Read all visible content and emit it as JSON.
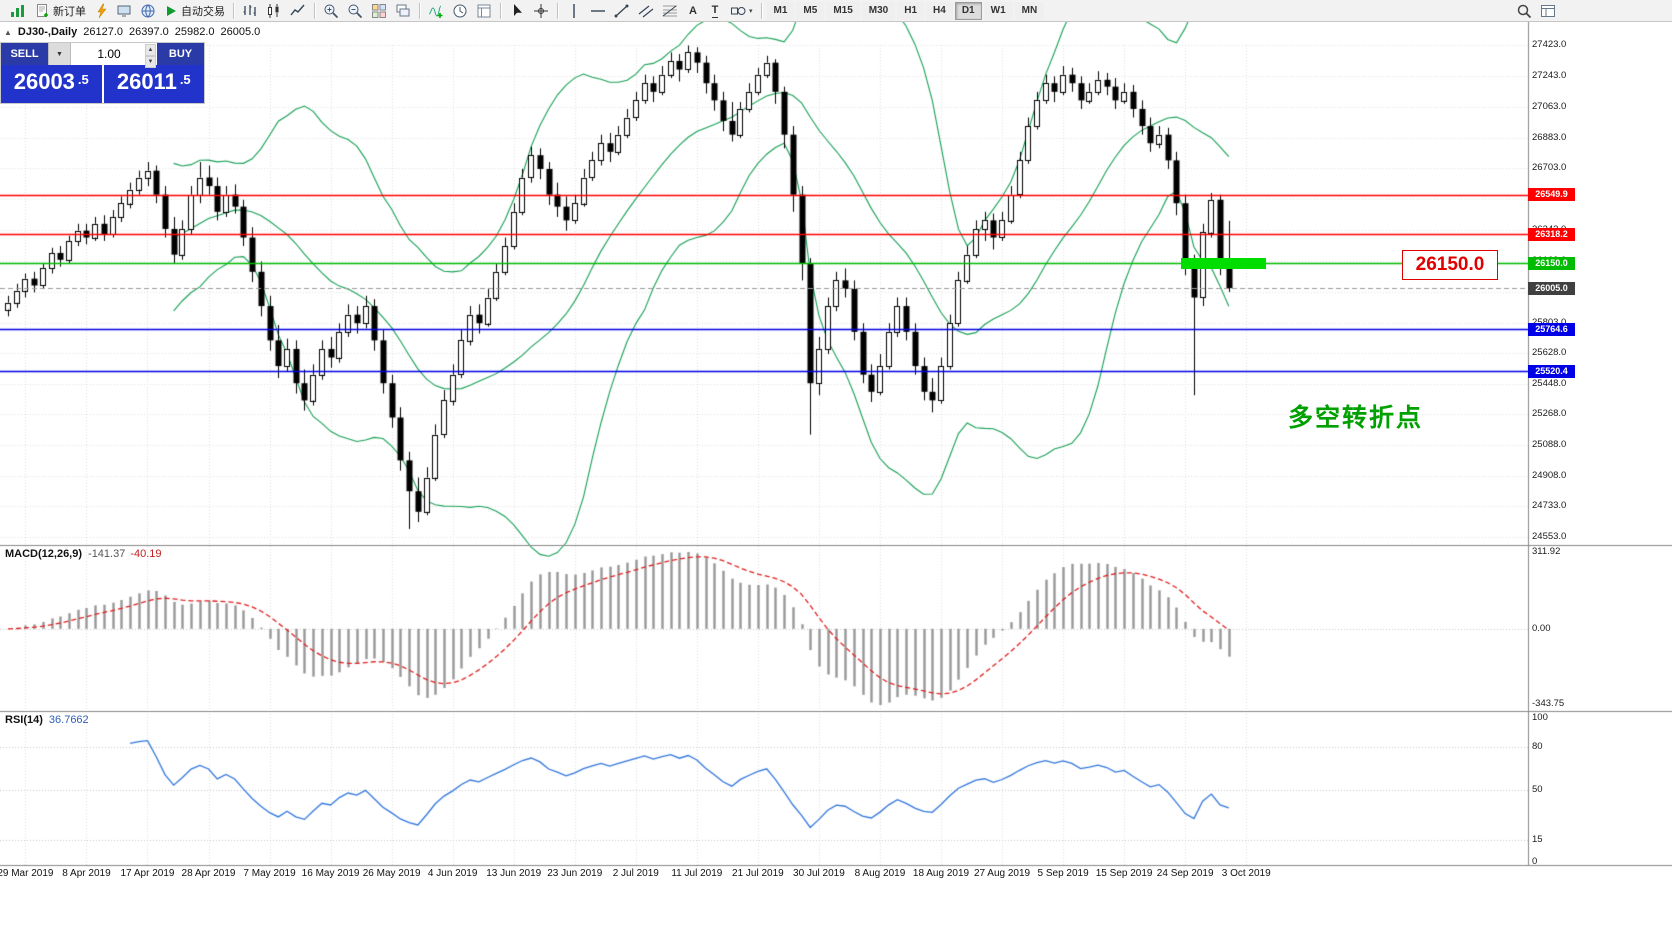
{
  "icons": {
    "collapse": "▲",
    "dropdown_arrow": "▼",
    "spin_up": "▲",
    "spin_down": "▼",
    "shapes_caret": "▾",
    "text_a": "A",
    "text_t": "T"
  },
  "toolbar": {
    "new_order": "新订单",
    "auto_trading": "自动交易",
    "timeframes": [
      "M1",
      "M5",
      "M15",
      "M30",
      "H1",
      "H4",
      "D1",
      "W1",
      "MN"
    ],
    "active_timeframe": "D1"
  },
  "chart": {
    "symbol": "DJ30-,Daily",
    "ohlc": {
      "open": "26127.0",
      "high": "26397.0",
      "low": "25982.0",
      "close": "26005.0"
    },
    "price_range": [
      24553,
      27423
    ],
    "price_axis": [
      "27423.0",
      "27243.0",
      "27063.0",
      "26883.0",
      "26703.0",
      "26523.0",
      "26343.0",
      "26163.0",
      "25983.0",
      "25803.0",
      "25628.0",
      "25448.0",
      "25268.0",
      "25088.0",
      "24908.0",
      "24733.0",
      "24553.0"
    ],
    "dates": [
      "29 Mar 2019",
      "8 Apr 2019",
      "17 Apr 2019",
      "28 Apr 2019",
      "7 May 2019",
      "16 May 2019",
      "26 May 2019",
      "4 Jun 2019",
      "13 Jun 2019",
      "23 Jun 2019",
      "2 Jul 2019",
      "11 Jul 2019",
      "21 Jul 2019",
      "30 Jul 2019",
      "8 Aug 2019",
      "18 Aug 2019",
      "27 Aug 2019",
      "5 Sep 2019",
      "15 Sep 2019",
      "24 Sep 2019",
      "3 Oct 2019"
    ],
    "hlines": [
      {
        "label": "26549.9",
        "value": 26549.9,
        "color": "#FF0000"
      },
      {
        "label": "26318.2",
        "value": 26318.2,
        "color": "#FF0000"
      },
      {
        "label": "26150.0",
        "value": 26150.0,
        "color": "#00BB00"
      },
      {
        "label": "25764.6",
        "value": 25764.6,
        "color": "#0000E6"
      },
      {
        "label": "25520.4",
        "value": 25520.4,
        "color": "#0000E6"
      }
    ],
    "current_price": {
      "label": "26005.0",
      "value": 26005.0,
      "color": "#404040"
    },
    "annotation": {
      "text": "多空转折点",
      "color": "#00A000"
    },
    "price_callout": {
      "text": "26150.0",
      "color": "#E00000"
    },
    "trade_panel": {
      "sell_label": "SELL",
      "buy_label": "BUY",
      "volume": "1.00",
      "sell_price": "26003",
      "sell_frac": ".5",
      "buy_price": "26011",
      "buy_frac": ".5"
    }
  },
  "chart_data": {
    "type": "candlestick",
    "symbol": "DJ30",
    "timeframe": "Daily",
    "overlays": {
      "bollinger": {
        "period": 20,
        "deviation": 2,
        "color": "#18A055"
      }
    },
    "macd": {
      "label": "MACD(12,26,9)",
      "main": "-141.37",
      "signal": "-40.19",
      "params": [
        12,
        26,
        9
      ],
      "axis": [
        "311.92",
        "0.00",
        "-343.75"
      ]
    },
    "rsi": {
      "label": "RSI(14)",
      "value": "36.7662",
      "period": 14,
      "axis": [
        "100",
        "80",
        "50",
        "15",
        "0"
      ]
    },
    "candles": [
      [
        25880,
        25960,
        25840,
        25920
      ],
      [
        25920,
        26030,
        25890,
        25990
      ],
      [
        25990,
        26090,
        25950,
        26060
      ],
      [
        26060,
        26100,
        25980,
        26020
      ],
      [
        26020,
        26150,
        26000,
        26120
      ],
      [
        26120,
        26240,
        26090,
        26210
      ],
      [
        26210,
        26250,
        26130,
        26170
      ],
      [
        26170,
        26310,
        26150,
        26280
      ],
      [
        26280,
        26380,
        26250,
        26340
      ],
      [
        26340,
        26380,
        26260,
        26300
      ],
      [
        26300,
        26420,
        26280,
        26380
      ],
      [
        26380,
        26430,
        26280,
        26320
      ],
      [
        26320,
        26460,
        26300,
        26420
      ],
      [
        26420,
        26540,
        26390,
        26500
      ],
      [
        26500,
        26620,
        26470,
        26580
      ],
      [
        26580,
        26690,
        26550,
        26650
      ],
      [
        26650,
        26740,
        26600,
        26690
      ],
      [
        26690,
        26720,
        26500,
        26550
      ],
      [
        26550,
        26600,
        26300,
        26350
      ],
      [
        26350,
        26420,
        26150,
        26200
      ],
      [
        26200,
        26400,
        26170,
        26350
      ],
      [
        26350,
        26600,
        26320,
        26550
      ],
      [
        26550,
        26740,
        26500,
        26650
      ],
      [
        26650,
        26720,
        26550,
        26600
      ],
      [
        26600,
        26650,
        26400,
        26450
      ],
      [
        26450,
        26600,
        26420,
        26550
      ],
      [
        26550,
        26610,
        26440,
        26480
      ],
      [
        26480,
        26520,
        26250,
        26300
      ],
      [
        26300,
        26360,
        26040,
        26100
      ],
      [
        26100,
        26160,
        25840,
        25900
      ],
      [
        25900,
        25960,
        25640,
        25700
      ],
      [
        25700,
        25790,
        25480,
        25550
      ],
      [
        25550,
        25710,
        25520,
        25650
      ],
      [
        25650,
        25700,
        25390,
        25450
      ],
      [
        25450,
        25530,
        25290,
        25350
      ],
      [
        25350,
        25560,
        25320,
        25500
      ],
      [
        25500,
        25700,
        25470,
        25650
      ],
      [
        25650,
        25720,
        25540,
        25600
      ],
      [
        25600,
        25800,
        25570,
        25750
      ],
      [
        25750,
        25910,
        25720,
        25850
      ],
      [
        25850,
        25900,
        25740,
        25800
      ],
      [
        25800,
        25960,
        25770,
        25900
      ],
      [
        25900,
        25940,
        25640,
        25700
      ],
      [
        25700,
        25760,
        25390,
        25450
      ],
      [
        25450,
        25500,
        25190,
        25250
      ],
      [
        25250,
        25310,
        24940,
        25000
      ],
      [
        25000,
        25050,
        24600,
        24820
      ],
      [
        24820,
        24900,
        24640,
        24700
      ],
      [
        24700,
        24960,
        24680,
        24900
      ],
      [
        24900,
        25210,
        24880,
        25150
      ],
      [
        25150,
        25410,
        25130,
        25350
      ],
      [
        25350,
        25560,
        25320,
        25500
      ],
      [
        25500,
        25760,
        25480,
        25700
      ],
      [
        25700,
        25900,
        25670,
        25850
      ],
      [
        25850,
        25910,
        25740,
        25800
      ],
      [
        25800,
        26000,
        25780,
        25950
      ],
      [
        25950,
        26150,
        25930,
        26100
      ],
      [
        26100,
        26300,
        26080,
        26250
      ],
      [
        26250,
        26500,
        26230,
        26450
      ],
      [
        26450,
        26700,
        26430,
        26650
      ],
      [
        26650,
        26830,
        26620,
        26780
      ],
      [
        26780,
        26820,
        26640,
        26700
      ],
      [
        26700,
        26740,
        26490,
        26550
      ],
      [
        26550,
        26620,
        26420,
        26480
      ],
      [
        26480,
        26540,
        26340,
        26400
      ],
      [
        26400,
        26550,
        26380,
        26500
      ],
      [
        26500,
        26700,
        26480,
        26650
      ],
      [
        26650,
        26800,
        26630,
        26750
      ],
      [
        26750,
        26900,
        26720,
        26850
      ],
      [
        26850,
        26910,
        26740,
        26800
      ],
      [
        26800,
        26950,
        26780,
        26900
      ],
      [
        26900,
        27050,
        26880,
        27000
      ],
      [
        27000,
        27150,
        26980,
        27100
      ],
      [
        27100,
        27250,
        27080,
        27200
      ],
      [
        27200,
        27240,
        27090,
        27150
      ],
      [
        27150,
        27300,
        27130,
        27250
      ],
      [
        27250,
        27380,
        27230,
        27330
      ],
      [
        27330,
        27370,
        27210,
        27280
      ],
      [
        27280,
        27420,
        27260,
        27380
      ],
      [
        27380,
        27410,
        27260,
        27320
      ],
      [
        27320,
        27360,
        27140,
        27200
      ],
      [
        27200,
        27250,
        27040,
        27100
      ],
      [
        27100,
        27150,
        26920,
        26980
      ],
      [
        26980,
        27090,
        26860,
        26900
      ],
      [
        26900,
        27090,
        26880,
        27050
      ],
      [
        27050,
        27200,
        27030,
        27150
      ],
      [
        27150,
        27290,
        27130,
        27250
      ],
      [
        27250,
        27360,
        27230,
        27320
      ],
      [
        27320,
        27340,
        27080,
        27150
      ],
      [
        27150,
        27180,
        26820,
        26900
      ],
      [
        26900,
        26950,
        26450,
        26550
      ],
      [
        26550,
        26600,
        26050,
        26150
      ],
      [
        26150,
        26180,
        25150,
        25450
      ],
      [
        25450,
        25720,
        25380,
        25650
      ],
      [
        25650,
        25950,
        25620,
        25900
      ],
      [
        25900,
        26100,
        25870,
        26050
      ],
      [
        26050,
        26120,
        25950,
        26000
      ],
      [
        26000,
        26050,
        25700,
        25750
      ],
      [
        25750,
        25800,
        25450,
        25500
      ],
      [
        25500,
        25560,
        25340,
        25400
      ],
      [
        25400,
        25620,
        25380,
        25550
      ],
      [
        25550,
        25800,
        25530,
        25750
      ],
      [
        25750,
        25950,
        25720,
        25900
      ],
      [
        25900,
        25950,
        25700,
        25750
      ],
      [
        25750,
        25800,
        25500,
        25550
      ],
      [
        25550,
        25600,
        25350,
        25400
      ],
      [
        25400,
        25480,
        25280,
        25350
      ],
      [
        25350,
        25600,
        25330,
        25550
      ],
      [
        25550,
        25850,
        25530,
        25800
      ],
      [
        25800,
        26100,
        25780,
        26050
      ],
      [
        26050,
        26250,
        26030,
        26200
      ],
      [
        26200,
        26400,
        26180,
        26350
      ],
      [
        26350,
        26450,
        26280,
        26400
      ],
      [
        26400,
        26440,
        26230,
        26300
      ],
      [
        26300,
        26450,
        26280,
        26400
      ],
      [
        26400,
        26600,
        26380,
        26550
      ],
      [
        26550,
        26800,
        26530,
        26750
      ],
      [
        26750,
        27000,
        26730,
        26950
      ],
      [
        26950,
        27150,
        26930,
        27100
      ],
      [
        27100,
        27250,
        27080,
        27200
      ],
      [
        27200,
        27240,
        27090,
        27150
      ],
      [
        27150,
        27300,
        27130,
        27250
      ],
      [
        27250,
        27290,
        27150,
        27200
      ],
      [
        27200,
        27240,
        27050,
        27100
      ],
      [
        27100,
        27200,
        27080,
        27150
      ],
      [
        27150,
        27270,
        27130,
        27220
      ],
      [
        27220,
        27260,
        27130,
        27180
      ],
      [
        27180,
        27230,
        27050,
        27100
      ],
      [
        27100,
        27200,
        27080,
        27150
      ],
      [
        27150,
        27190,
        27000,
        27050
      ],
      [
        27050,
        27100,
        26900,
        26950
      ],
      [
        26950,
        27000,
        26800,
        26850
      ],
      [
        26850,
        26950,
        26820,
        26900
      ],
      [
        26900,
        26940,
        26700,
        26750
      ],
      [
        26750,
        26800,
        26430,
        26500
      ],
      [
        26500,
        26550,
        26080,
        26150
      ],
      [
        26150,
        26200,
        25380,
        25950
      ],
      [
        25950,
        26380,
        25900,
        26330
      ],
      [
        26330,
        26560,
        26300,
        26520
      ],
      [
        26520,
        26550,
        26080,
        26127
      ],
      [
        26127,
        26397,
        25982,
        26005
      ]
    ]
  }
}
